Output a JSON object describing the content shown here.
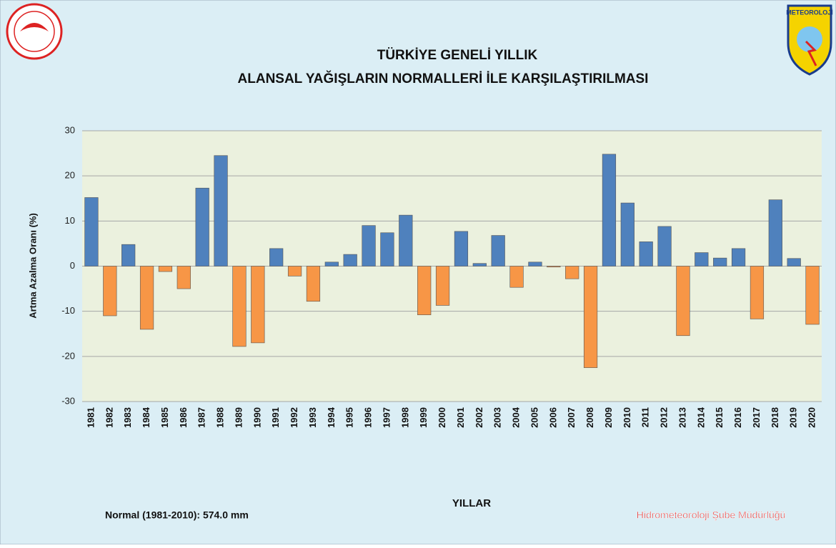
{
  "chart_data": {
    "type": "bar",
    "title_lines": [
      "TÜRKİYE GENELİ  YILLIK",
      "ALANSAL YAĞIŞLARIN NORMALLERİ İLE KARŞILAŞTIRILMASI"
    ],
    "y_label": "Artma Azalma Oranı (%)",
    "x_label": "YILLAR",
    "note": "Normal (1981-2010): 574.0 mm",
    "footer": "Hidrometeoroloji Şube Müdürlüğü",
    "logo_text": "METEOROLOJİ",
    "categories": [
      "1981",
      "1982",
      "1983",
      "1984",
      "1985",
      "1986",
      "1987",
      "1988",
      "1989",
      "1990",
      "1991",
      "1992",
      "1993",
      "1994",
      "1995",
      "1996",
      "1997",
      "1998",
      "1999",
      "2000",
      "2001",
      "2002",
      "2003",
      "2004",
      "2005",
      "2006",
      "2007",
      "2008",
      "2009",
      "2010",
      "2011",
      "2012",
      "2013",
      "2014",
      "2015",
      "2016",
      "2017",
      "2018",
      "2019",
      "2020"
    ],
    "values": [
      15.2,
      -11,
      4.8,
      -14,
      -1.2,
      -5,
      17.3,
      24.5,
      -17.8,
      -17,
      3.9,
      -2.2,
      -7.8,
      0.9,
      2.6,
      9,
      7.4,
      11.3,
      -10.8,
      -8.7,
      7.7,
      0.6,
      6.8,
      -4.7,
      0.9,
      -0.2,
      -2.8,
      -22.5,
      24.8,
      14,
      5.4,
      8.8,
      -15.4,
      3,
      1.8,
      3.9,
      -11.7,
      14.7,
      1.7,
      -12.9
    ],
    "positive_color": "#4f81bd",
    "negative_color": "#f79646",
    "ylim": [
      -30,
      30
    ],
    "yticks": [
      -30,
      -20,
      -10,
      0,
      10,
      20,
      30
    ],
    "grid": true
  }
}
